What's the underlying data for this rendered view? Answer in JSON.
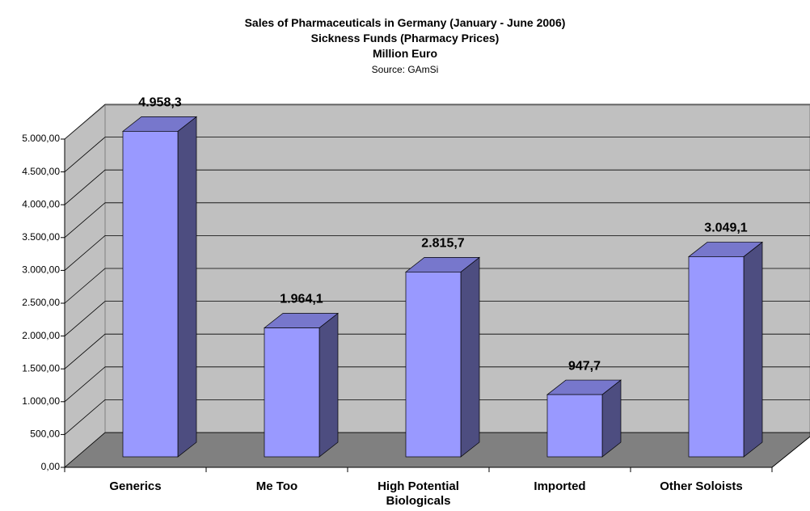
{
  "chart_data": {
    "type": "bar3d",
    "title": "Sales of Pharmaceuticals in Germany (January - June 2006)",
    "subtitle": "Sickness Funds (Pharmacy Prices)",
    "unit_label": "Million Euro",
    "source": "Source: GAmSi",
    "categories": [
      "Generics",
      "Me Too",
      "High Potential Biologicals",
      "Imported",
      "Other Soloists"
    ],
    "values": [
      4958.3,
      1964.1,
      2815.7,
      947.7,
      3049.1
    ],
    "value_labels": [
      "4.958,3",
      "1.964,1",
      "2.815,7",
      "947,7",
      "3.049,1"
    ],
    "color": "#9999ff",
    "ylim": [
      0,
      5000
    ],
    "yticks": [
      {
        "value": 0,
        "label": "0,00"
      },
      {
        "value": 500,
        "label": "500,00"
      },
      {
        "value": 1000,
        "label": "1.000,00"
      },
      {
        "value": 1500,
        "label": "1.500,00"
      },
      {
        "value": 2000,
        "label": "2.000,00"
      },
      {
        "value": 2500,
        "label": "2.500,00"
      },
      {
        "value": 3000,
        "label": "3.000,00"
      },
      {
        "value": 3500,
        "label": "3.500,00"
      },
      {
        "value": 4000,
        "label": "4.000,00"
      },
      {
        "value": 4500,
        "label": "4.500,00"
      },
      {
        "value": 5000,
        "label": "5.000,00"
      }
    ],
    "grid": true
  }
}
